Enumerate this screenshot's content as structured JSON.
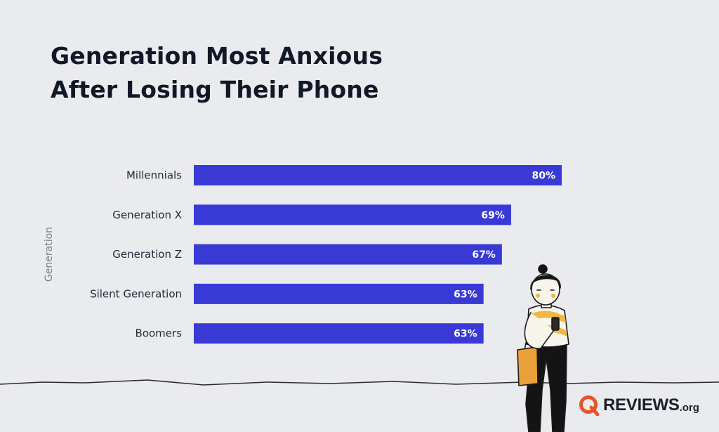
{
  "title_lines": [
    "Generation Most Anxious",
    "After Losing Their Phone"
  ],
  "brand": {
    "name": "REVIEWS",
    "suffix": ".org",
    "mark_icon": "reviews-q-logo-icon",
    "mark_color": "#e8542a"
  },
  "colors": {
    "bar": "#3939d6",
    "background": "#eaebee",
    "title": "#111827",
    "label": "#1f2937",
    "axis_title": "#7b7f86",
    "value_label": "#ffffff"
  },
  "chart_data": {
    "type": "bar",
    "orientation": "horizontal",
    "title": "Generation Most Anxious After Losing Their Phone",
    "ylabel": "Generation",
    "xlabel": "",
    "categories": [
      "Millennials",
      "Generation X",
      "Generation Z",
      "Silent Generation",
      "Boomers"
    ],
    "values": [
      80,
      69,
      67,
      63,
      63
    ],
    "value_labels": [
      "80%",
      "69%",
      "67%",
      "63%",
      "63%"
    ],
    "unit": "%",
    "xlim": [
      0,
      100
    ],
    "grid": false,
    "legend": "none"
  }
}
